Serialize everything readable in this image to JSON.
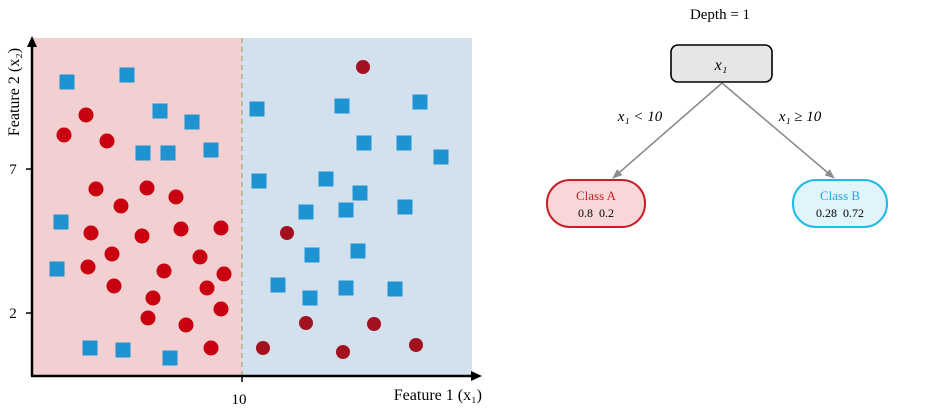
{
  "scatter": {
    "ylabel": "Feature 2 (x₂)",
    "xlabel": "Feature 1 (x₁)",
    "xticks": [
      "10"
    ],
    "yticks": [
      "7",
      "2"
    ],
    "colors": {
      "left_region": "#f2cfd0",
      "right_region": "#d3e1ef",
      "split_line": "#9bab7a",
      "circle": "#c9000f",
      "circle_right": "#a3101e",
      "square": "#1f93d1"
    }
  },
  "tree": {
    "title": "Depth = 1",
    "root_label": "x₁",
    "left_edge_label": "x₁ < 10",
    "right_edge_label": "x₁ ≥ 10",
    "left_leaf": {
      "name": "Class A",
      "probs": "0.8  0.2"
    },
    "right_leaf": {
      "name": "Class B",
      "probs": "0.28  0.72"
    },
    "colors": {
      "root_fill": "#e6e6e6",
      "left_border": "#c8202a",
      "left_fill": "#f8d7d8",
      "left_text": "#c8202a",
      "right_border": "#1fbbe6",
      "right_fill": "#dff4fb",
      "right_text": "#1fa9dd",
      "edge": "#8c8c8c"
    }
  }
}
